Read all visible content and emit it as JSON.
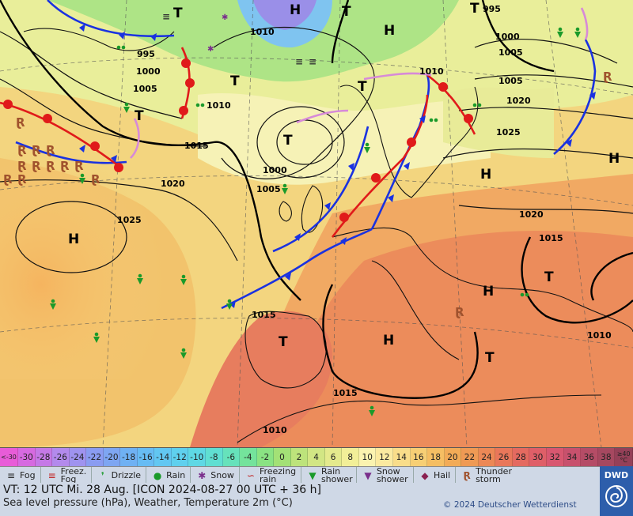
{
  "map": {
    "pressure_labels": [
      "995",
      "1000",
      "1005",
      "1010",
      "1015",
      "1020",
      "1025",
      "1010",
      "1015",
      "1020",
      "1025",
      "1000",
      "1005",
      "1010",
      "1015",
      "1020",
      "1005",
      "1010",
      "1015",
      "1010",
      "995",
      "1000",
      "1005"
    ],
    "systems": {
      "high": "H",
      "low": "T"
    }
  },
  "scale": {
    "values": [
      "<-30",
      "-30",
      "-28",
      "-26",
      "-24",
      "-22",
      "-20",
      "-18",
      "-16",
      "-14",
      "-12",
      "-10",
      "-8",
      "-6",
      "-4",
      "-2",
      "0",
      "2",
      "4",
      "6",
      "8",
      "10",
      "12",
      "14",
      "16",
      "18",
      "20",
      "22",
      "24",
      "26",
      "28",
      "30",
      "32",
      "34",
      "36",
      "38",
      "≥40 °C"
    ],
    "colors": [
      "#e85cd8",
      "#d66ae0",
      "#c579e6",
      "#b38aec",
      "#9f93ef",
      "#8a9cf1",
      "#7ea6f2",
      "#6fb1f3",
      "#67bcf4",
      "#62c7f2",
      "#5fd0ee",
      "#5ed8e4",
      "#60dfd2",
      "#66e2bb",
      "#74e39c",
      "#8ae383",
      "#a3e176",
      "#bde37b",
      "#d2e684",
      "#e4ea8d",
      "#f2ef98",
      "#fbf3b0",
      "#fbeaa0",
      "#f9dd8a",
      "#f7cf75",
      "#f5be63",
      "#f2ab57",
      "#ef9a54",
      "#ec8856",
      "#e9775a",
      "#e46a60",
      "#df5f68",
      "#d85770",
      "#c8516d",
      "#b54c66",
      "#a64860",
      "#954058"
    ]
  },
  "legend": {
    "fog": "Fog",
    "freezing_fog": "Freez. Fog",
    "drizzle": "Drizzle",
    "rain": "Rain",
    "snow": "Snow",
    "freezing_rain": "Freezing rain",
    "rain_shower": "Rain shower",
    "snow_shower": "Snow shower",
    "hail": "Hail",
    "thunderstorm": "Thunder storm"
  },
  "info": {
    "valid_time": "VT: 12 UTC Mi.  28 Aug. [ICON 2024-08-27  00 UTC + 36 h]",
    "subtitle": "Sea level pressure (hPa), Weather, Temperature 2m (°C)",
    "copyright": "© 2024 Deutscher Wetterdienst",
    "logo": "DWD"
  }
}
